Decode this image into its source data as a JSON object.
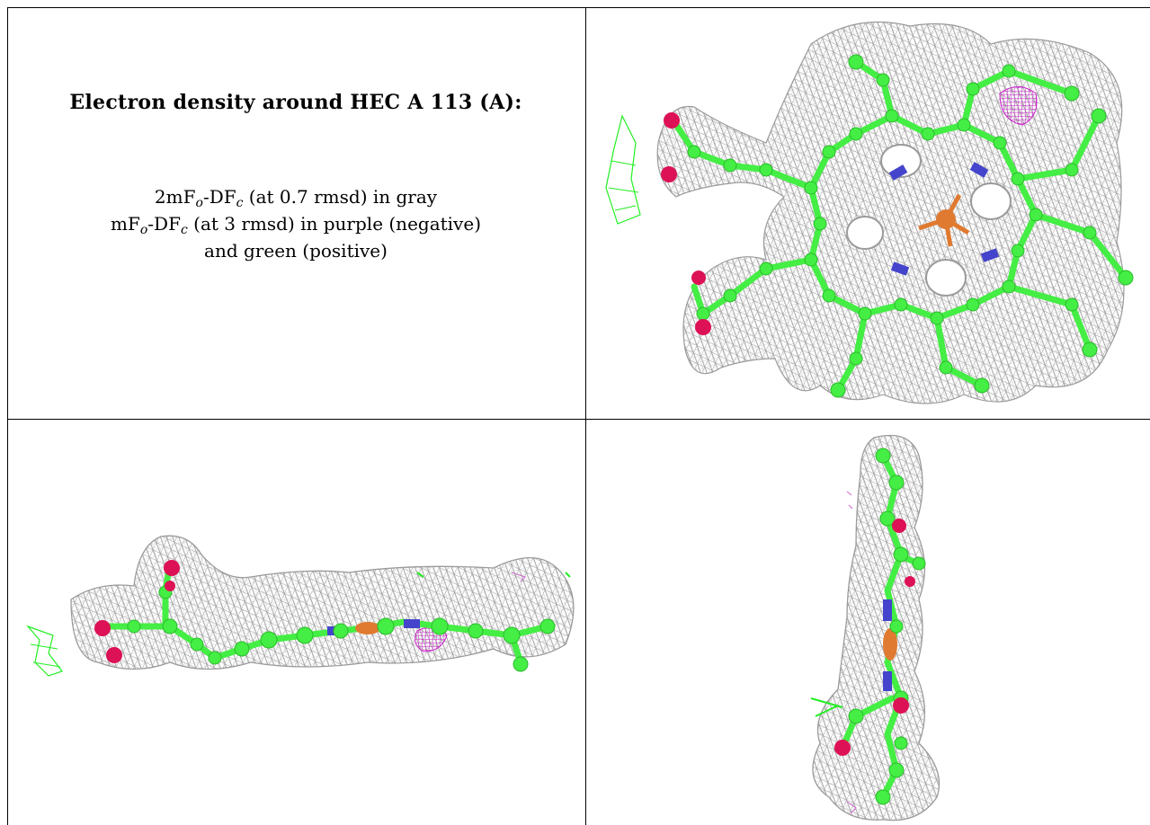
{
  "caption": {
    "title": "Electron density around HEC A 113 (A):",
    "line1": {
      "a": "2mF",
      "b": "o",
      "c": "-DF",
      "d": "c",
      "e": " (at 0.7 rmsd) in gray"
    },
    "line2": {
      "a": "mF",
      "b": "o",
      "c": "-DF",
      "d": "c",
      "e": " (at 3 rmsd) in purple (negative)"
    },
    "line3": "and green (positive)"
  },
  "colors": {
    "mesh_2fofc": "#9a9a9a",
    "positive_density": "#22ee22",
    "negative_density": "#cc22cc",
    "carbon": "#44ee44",
    "nitrogen": "#4444cc",
    "oxygen": "#dd1155",
    "iron": "#e07a30"
  },
  "views": [
    {
      "id": "top-view",
      "icon": "heme-molecule-face-on-image"
    },
    {
      "id": "side-view",
      "icon": "heme-molecule-edge-on-image"
    },
    {
      "id": "end-view",
      "icon": "heme-molecule-end-on-image"
    }
  ]
}
